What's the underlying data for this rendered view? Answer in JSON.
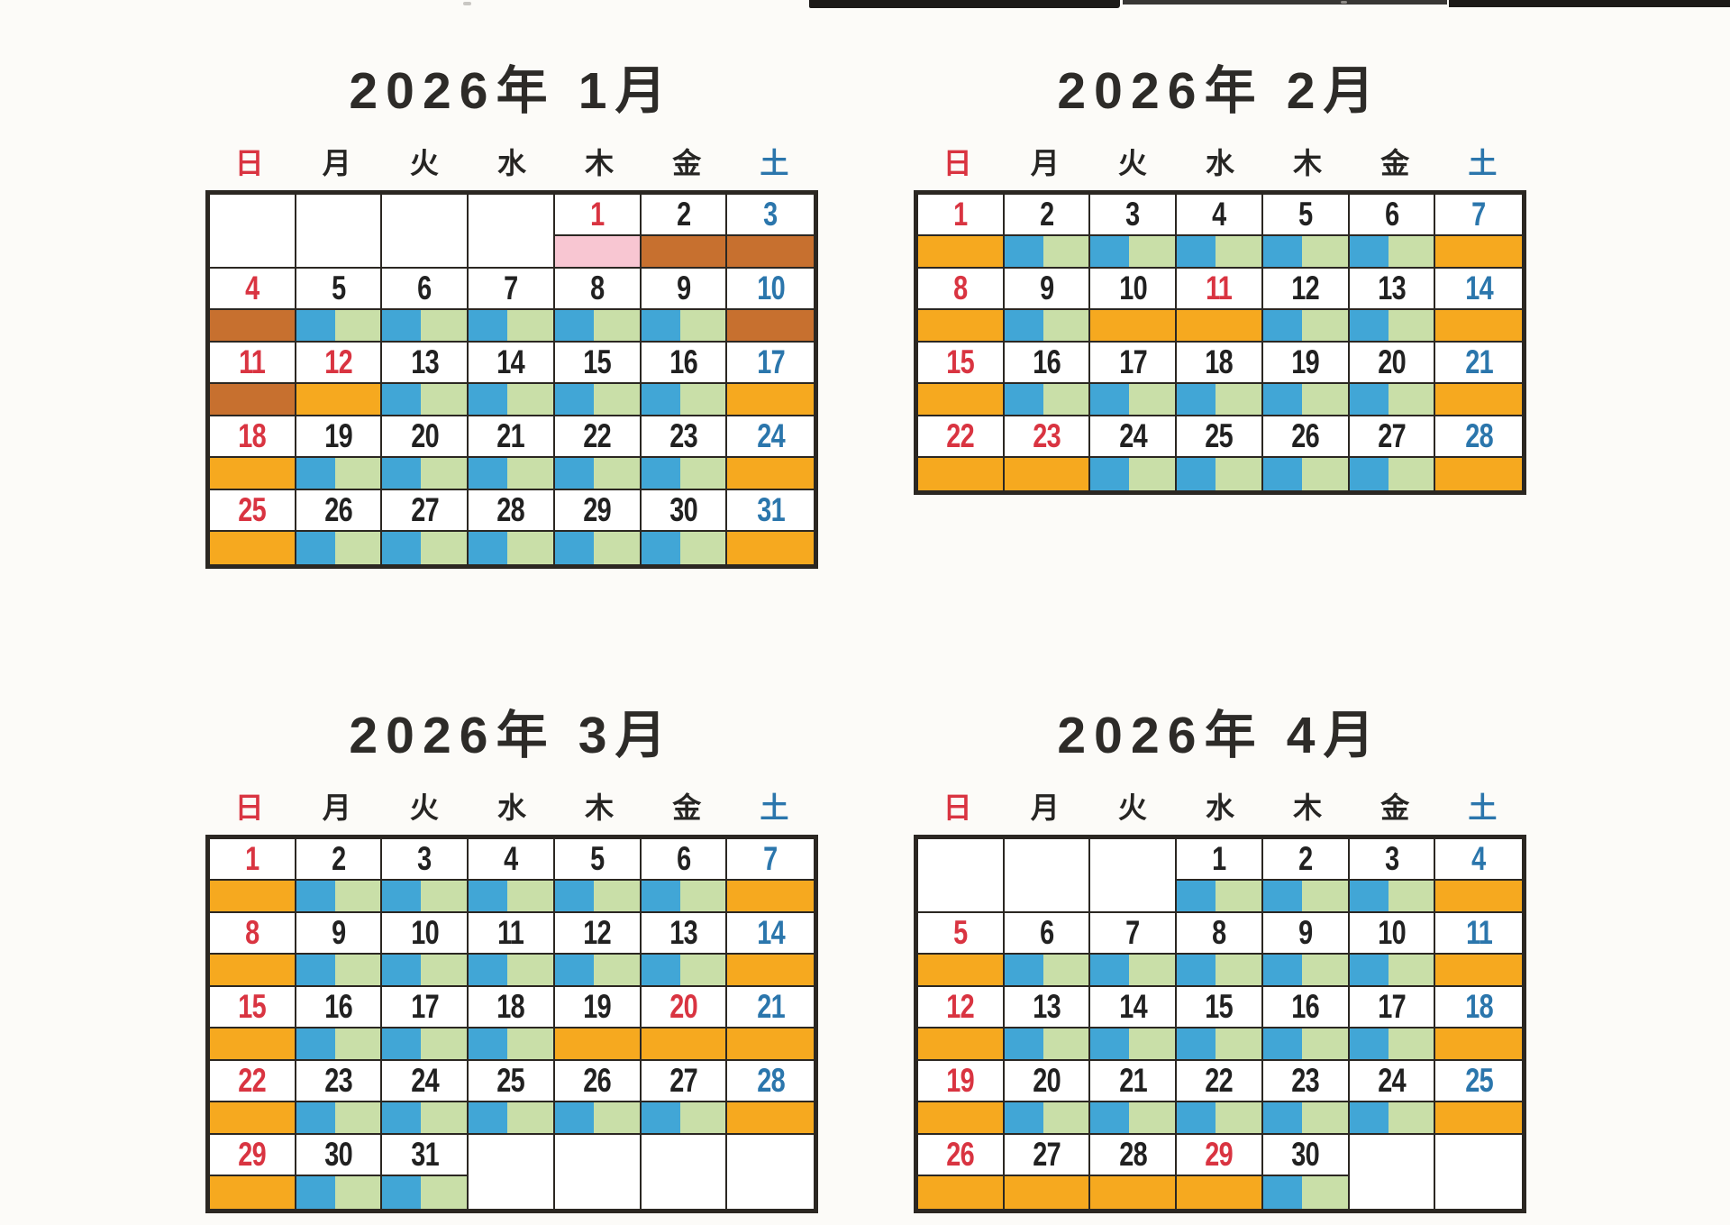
{
  "palette": {
    "open_am": "#41a6d6",
    "open_pm": "#c9dfa8",
    "closed": "#f6a91f",
    "holiday": "#c7702f",
    "newyear": "#f8c6d2",
    "sunday_red": "#d93441",
    "saturday_blue": "#2b76ac",
    "weekday_ink": "#212121",
    "grid_line": "#2b2722",
    "paper": "#fcfbf8"
  },
  "weekdays": [
    {
      "label": "日",
      "tone": "red"
    },
    {
      "label": "月",
      "tone": "black"
    },
    {
      "label": "火",
      "tone": "black"
    },
    {
      "label": "水",
      "tone": "black"
    },
    {
      "label": "木",
      "tone": "black"
    },
    {
      "label": "金",
      "tone": "black"
    },
    {
      "label": "土",
      "tone": "blue"
    }
  ],
  "months": [
    {
      "title": "2026年 1月",
      "weeks": [
        [
          {
            "d": "",
            "c": "",
            "b": ""
          },
          {
            "d": "",
            "c": "",
            "b": ""
          },
          {
            "d": "",
            "c": "",
            "b": ""
          },
          {
            "d": "",
            "c": "",
            "b": ""
          },
          {
            "d": "1",
            "c": "red",
            "b": "newyear"
          },
          {
            "d": "2",
            "c": "black",
            "b": "holiday"
          },
          {
            "d": "3",
            "c": "blue",
            "b": "holiday"
          }
        ],
        [
          {
            "d": "4",
            "c": "red",
            "b": "holiday"
          },
          {
            "d": "5",
            "c": "black",
            "b": "open"
          },
          {
            "d": "6",
            "c": "black",
            "b": "open"
          },
          {
            "d": "7",
            "c": "black",
            "b": "open"
          },
          {
            "d": "8",
            "c": "black",
            "b": "open"
          },
          {
            "d": "9",
            "c": "black",
            "b": "open"
          },
          {
            "d": "10",
            "c": "blue",
            "b": "holiday"
          }
        ],
        [
          {
            "d": "11",
            "c": "red",
            "b": "holiday"
          },
          {
            "d": "12",
            "c": "red",
            "b": "closed"
          },
          {
            "d": "13",
            "c": "black",
            "b": "open"
          },
          {
            "d": "14",
            "c": "black",
            "b": "open"
          },
          {
            "d": "15",
            "c": "black",
            "b": "open"
          },
          {
            "d": "16",
            "c": "black",
            "b": "open"
          },
          {
            "d": "17",
            "c": "blue",
            "b": "closed"
          }
        ],
        [
          {
            "d": "18",
            "c": "red",
            "b": "closed"
          },
          {
            "d": "19",
            "c": "black",
            "b": "open"
          },
          {
            "d": "20",
            "c": "black",
            "b": "open"
          },
          {
            "d": "21",
            "c": "black",
            "b": "open"
          },
          {
            "d": "22",
            "c": "black",
            "b": "open"
          },
          {
            "d": "23",
            "c": "black",
            "b": "open"
          },
          {
            "d": "24",
            "c": "blue",
            "b": "closed"
          }
        ],
        [
          {
            "d": "25",
            "c": "red",
            "b": "closed"
          },
          {
            "d": "26",
            "c": "black",
            "b": "open"
          },
          {
            "d": "27",
            "c": "black",
            "b": "open"
          },
          {
            "d": "28",
            "c": "black",
            "b": "open"
          },
          {
            "d": "29",
            "c": "black",
            "b": "open"
          },
          {
            "d": "30",
            "c": "black",
            "b": "open"
          },
          {
            "d": "31",
            "c": "blue",
            "b": "closed"
          }
        ]
      ]
    },
    {
      "title": "2026年 2月",
      "weeks": [
        [
          {
            "d": "1",
            "c": "red",
            "b": "closed"
          },
          {
            "d": "2",
            "c": "black",
            "b": "open"
          },
          {
            "d": "3",
            "c": "black",
            "b": "open"
          },
          {
            "d": "4",
            "c": "black",
            "b": "open"
          },
          {
            "d": "5",
            "c": "black",
            "b": "open"
          },
          {
            "d": "6",
            "c": "black",
            "b": "open"
          },
          {
            "d": "7",
            "c": "blue",
            "b": "closed"
          }
        ],
        [
          {
            "d": "8",
            "c": "red",
            "b": "closed"
          },
          {
            "d": "9",
            "c": "black",
            "b": "open"
          },
          {
            "d": "10",
            "c": "black",
            "b": "closed"
          },
          {
            "d": "11",
            "c": "red",
            "b": "closed"
          },
          {
            "d": "12",
            "c": "black",
            "b": "open"
          },
          {
            "d": "13",
            "c": "black",
            "b": "open"
          },
          {
            "d": "14",
            "c": "blue",
            "b": "closed"
          }
        ],
        [
          {
            "d": "15",
            "c": "red",
            "b": "closed"
          },
          {
            "d": "16",
            "c": "black",
            "b": "open"
          },
          {
            "d": "17",
            "c": "black",
            "b": "open"
          },
          {
            "d": "18",
            "c": "black",
            "b": "open"
          },
          {
            "d": "19",
            "c": "black",
            "b": "open"
          },
          {
            "d": "20",
            "c": "black",
            "b": "open"
          },
          {
            "d": "21",
            "c": "blue",
            "b": "closed"
          }
        ],
        [
          {
            "d": "22",
            "c": "red",
            "b": "closed"
          },
          {
            "d": "23",
            "c": "red",
            "b": "closed"
          },
          {
            "d": "24",
            "c": "black",
            "b": "open"
          },
          {
            "d": "25",
            "c": "black",
            "b": "open"
          },
          {
            "d": "26",
            "c": "black",
            "b": "open"
          },
          {
            "d": "27",
            "c": "black",
            "b": "open"
          },
          {
            "d": "28",
            "c": "blue",
            "b": "closed"
          }
        ]
      ]
    },
    {
      "title": "2026年 3月",
      "weeks": [
        [
          {
            "d": "1",
            "c": "red",
            "b": "closed"
          },
          {
            "d": "2",
            "c": "black",
            "b": "open"
          },
          {
            "d": "3",
            "c": "black",
            "b": "open"
          },
          {
            "d": "4",
            "c": "black",
            "b": "open"
          },
          {
            "d": "5",
            "c": "black",
            "b": "open"
          },
          {
            "d": "6",
            "c": "black",
            "b": "open"
          },
          {
            "d": "7",
            "c": "blue",
            "b": "closed"
          }
        ],
        [
          {
            "d": "8",
            "c": "red",
            "b": "closed"
          },
          {
            "d": "9",
            "c": "black",
            "b": "open"
          },
          {
            "d": "10",
            "c": "black",
            "b": "open"
          },
          {
            "d": "11",
            "c": "black",
            "b": "open"
          },
          {
            "d": "12",
            "c": "black",
            "b": "open"
          },
          {
            "d": "13",
            "c": "black",
            "b": "open"
          },
          {
            "d": "14",
            "c": "blue",
            "b": "closed"
          }
        ],
        [
          {
            "d": "15",
            "c": "red",
            "b": "closed"
          },
          {
            "d": "16",
            "c": "black",
            "b": "open"
          },
          {
            "d": "17",
            "c": "black",
            "b": "open"
          },
          {
            "d": "18",
            "c": "black",
            "b": "open"
          },
          {
            "d": "19",
            "c": "black",
            "b": "closed"
          },
          {
            "d": "20",
            "c": "red",
            "b": "closed"
          },
          {
            "d": "21",
            "c": "blue",
            "b": "closed"
          }
        ],
        [
          {
            "d": "22",
            "c": "red",
            "b": "closed"
          },
          {
            "d": "23",
            "c": "black",
            "b": "open"
          },
          {
            "d": "24",
            "c": "black",
            "b": "open"
          },
          {
            "d": "25",
            "c": "black",
            "b": "open"
          },
          {
            "d": "26",
            "c": "black",
            "b": "open"
          },
          {
            "d": "27",
            "c": "black",
            "b": "open"
          },
          {
            "d": "28",
            "c": "blue",
            "b": "closed"
          }
        ],
        [
          {
            "d": "29",
            "c": "red",
            "b": "closed"
          },
          {
            "d": "30",
            "c": "black",
            "b": "open"
          },
          {
            "d": "31",
            "c": "black",
            "b": "open"
          },
          {
            "d": "",
            "c": "",
            "b": ""
          },
          {
            "d": "",
            "c": "",
            "b": ""
          },
          {
            "d": "",
            "c": "",
            "b": ""
          },
          {
            "d": "",
            "c": "",
            "b": ""
          }
        ]
      ]
    },
    {
      "title": "2026年 4月",
      "weeks": [
        [
          {
            "d": "",
            "c": "",
            "b": ""
          },
          {
            "d": "",
            "c": "",
            "b": ""
          },
          {
            "d": "",
            "c": "",
            "b": ""
          },
          {
            "d": "1",
            "c": "black",
            "b": "open"
          },
          {
            "d": "2",
            "c": "black",
            "b": "open"
          },
          {
            "d": "3",
            "c": "black",
            "b": "open"
          },
          {
            "d": "4",
            "c": "blue",
            "b": "closed"
          }
        ],
        [
          {
            "d": "5",
            "c": "red",
            "b": "closed"
          },
          {
            "d": "6",
            "c": "black",
            "b": "open"
          },
          {
            "d": "7",
            "c": "black",
            "b": "open"
          },
          {
            "d": "8",
            "c": "black",
            "b": "open"
          },
          {
            "d": "9",
            "c": "black",
            "b": "open"
          },
          {
            "d": "10",
            "c": "black",
            "b": "open"
          },
          {
            "d": "11",
            "c": "blue",
            "b": "closed"
          }
        ],
        [
          {
            "d": "12",
            "c": "red",
            "b": "closed"
          },
          {
            "d": "13",
            "c": "black",
            "b": "open"
          },
          {
            "d": "14",
            "c": "black",
            "b": "open"
          },
          {
            "d": "15",
            "c": "black",
            "b": "open"
          },
          {
            "d": "16",
            "c": "black",
            "b": "open"
          },
          {
            "d": "17",
            "c": "black",
            "b": "open"
          },
          {
            "d": "18",
            "c": "blue",
            "b": "closed"
          }
        ],
        [
          {
            "d": "19",
            "c": "red",
            "b": "closed"
          },
          {
            "d": "20",
            "c": "black",
            "b": "open"
          },
          {
            "d": "21",
            "c": "black",
            "b": "open"
          },
          {
            "d": "22",
            "c": "black",
            "b": "open"
          },
          {
            "d": "23",
            "c": "black",
            "b": "open"
          },
          {
            "d": "24",
            "c": "black",
            "b": "open"
          },
          {
            "d": "25",
            "c": "blue",
            "b": "closed"
          }
        ],
        [
          {
            "d": "26",
            "c": "red",
            "b": "closed"
          },
          {
            "d": "27",
            "c": "black",
            "b": "closed"
          },
          {
            "d": "28",
            "c": "black",
            "b": "closed"
          },
          {
            "d": "29",
            "c": "red",
            "b": "closed"
          },
          {
            "d": "30",
            "c": "black",
            "b": "open"
          },
          {
            "d": "",
            "c": "",
            "b": ""
          },
          {
            "d": "",
            "c": "",
            "b": ""
          }
        ]
      ]
    }
  ]
}
